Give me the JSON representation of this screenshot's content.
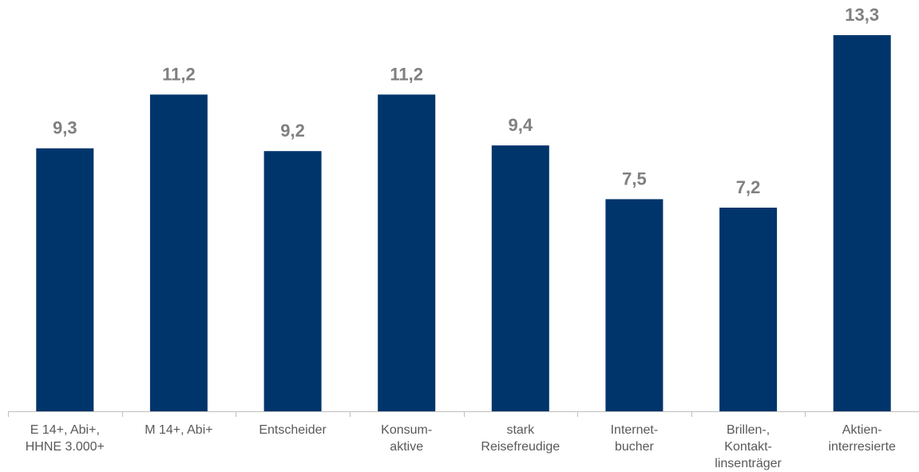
{
  "chart_data": {
    "type": "bar",
    "categories": [
      [
        "E 14+, Abi+,",
        "HHNE 3.000+"
      ],
      [
        "M 14+, Abi+"
      ],
      [
        "Entscheider"
      ],
      [
        "Konsum-",
        "aktive"
      ],
      [
        "stark",
        "Reisefreudige"
      ],
      [
        "Internet-",
        "bucher"
      ],
      [
        "Brillen-,",
        "Kontakt-",
        "linsenträger"
      ],
      [
        "Aktien-",
        "interresierte"
      ]
    ],
    "values": [
      9.3,
      11.2,
      9.2,
      11.2,
      9.4,
      7.5,
      7.2,
      13.3
    ],
    "value_labels": [
      "9,3",
      "11,2",
      "9,2",
      "11,2",
      "9,4",
      "7,5",
      "7,2",
      "13,3"
    ],
    "ylim": [
      0,
      13.3
    ],
    "grid": false,
    "colors": {
      "bar": "#00356B",
      "value_label": "#808080",
      "category_label": "#595959",
      "axis": "#BFBFBF"
    }
  }
}
